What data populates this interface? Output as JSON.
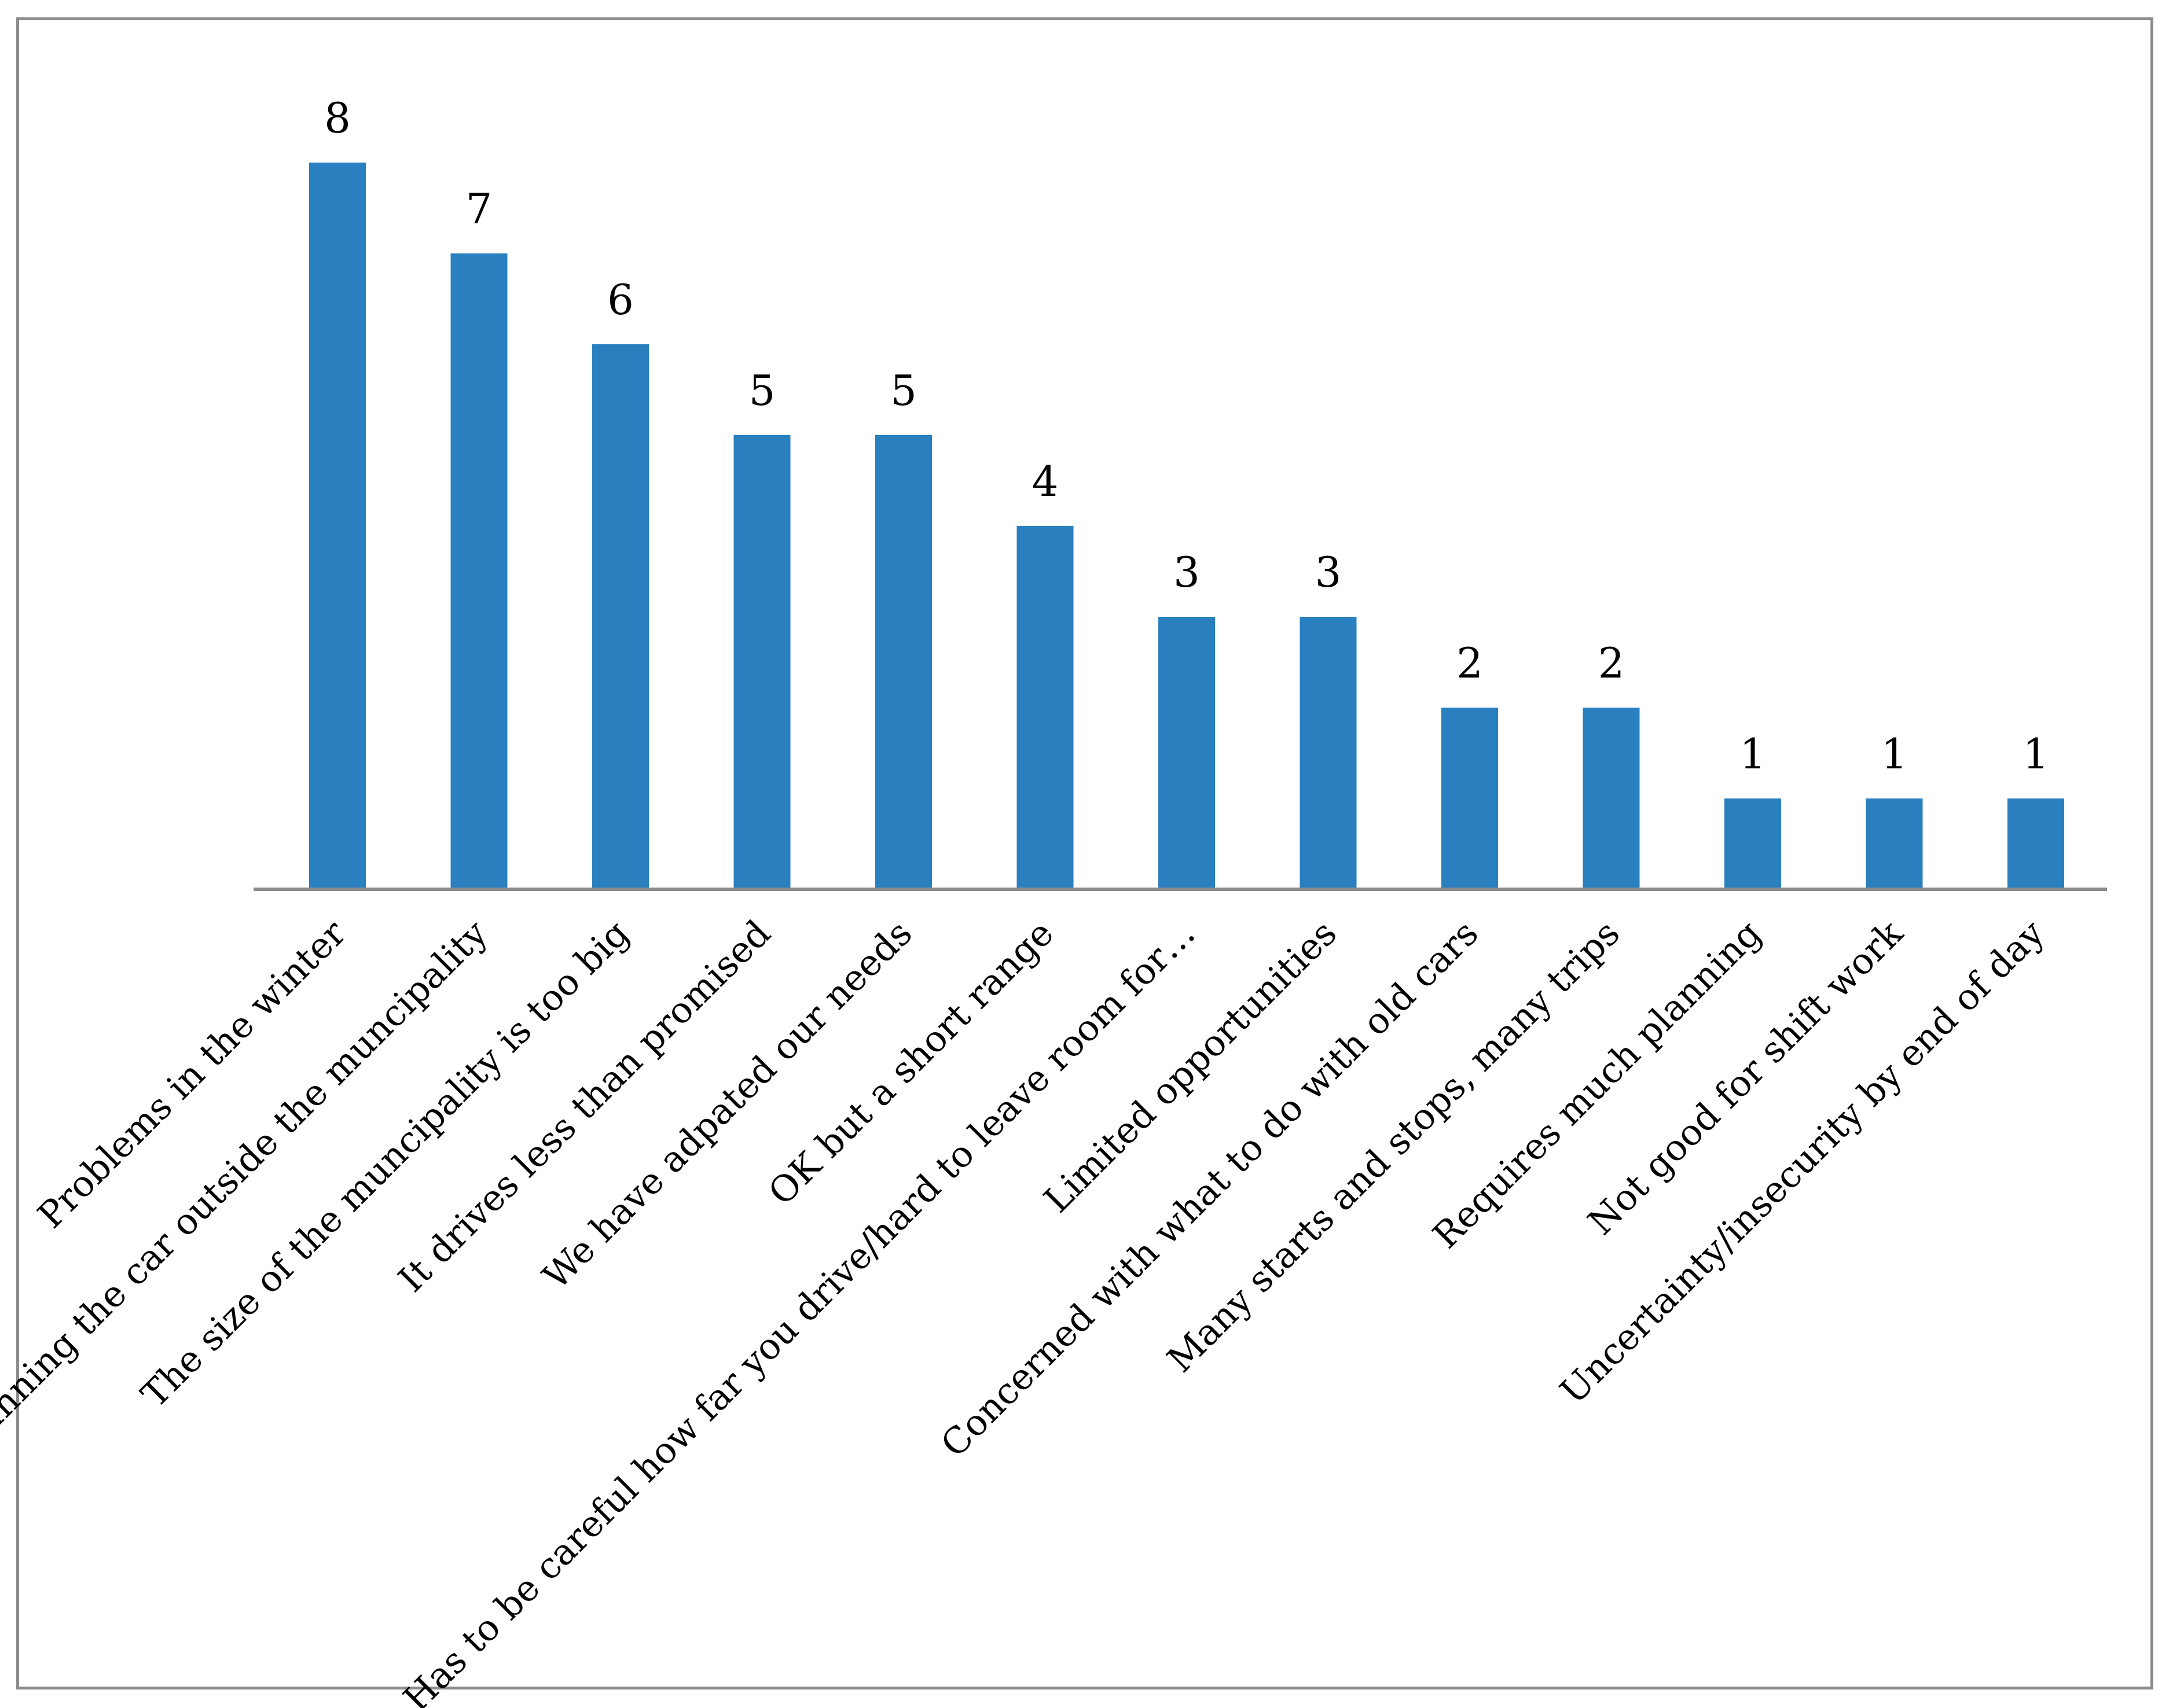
{
  "chart_data": {
    "type": "bar",
    "title": "",
    "xlabel": "",
    "ylabel": "",
    "ylim": [
      0,
      8
    ],
    "grid": false,
    "legend": "none",
    "bar_color": "#2a80bf",
    "axis_color": "#8c8c8c",
    "categories": [
      "Problems in the winter",
      "Running the car outside the muncipality",
      "The size of the muncipality is too big",
      "It drives less than promised",
      "We have adpated our needs",
      "OK but a short range",
      "Has to be careful how far you drive/hard to leave room for…",
      "Limited opportunities",
      "Concerned with what to do with old cars",
      "Many starts and stops, many trips",
      "Requires much planning",
      "Not good for shift work",
      "Uncertainty/insecurity by end of day"
    ],
    "values": [
      8,
      7,
      6,
      5,
      5,
      4,
      3,
      3,
      2,
      2,
      1,
      1,
      1
    ],
    "data_labels": [
      "8",
      "7",
      "6",
      "5",
      "5",
      "4",
      "3",
      "3",
      "2",
      "2",
      "1",
      "1",
      "1"
    ]
  }
}
